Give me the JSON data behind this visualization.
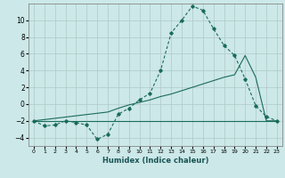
{
  "xlabel": "Humidex (Indice chaleur)",
  "background_color": "#cce8e8",
  "grid_color": "#b0c8c8",
  "line_color": "#1a6b5a",
  "x_data": [
    0,
    1,
    2,
    3,
    4,
    5,
    6,
    7,
    8,
    9,
    10,
    11,
    12,
    13,
    14,
    15,
    16,
    17,
    18,
    19,
    20,
    21,
    22,
    23
  ],
  "curve1_y": [
    -2,
    -2.6,
    -2.5,
    -2.0,
    -2.2,
    -2.5,
    -4.2,
    -3.6,
    -1.2,
    -0.5,
    0.5,
    1.3,
    4.0,
    8.5,
    10.0,
    11.7,
    11.2,
    9.0,
    7.0,
    5.8,
    3.0,
    -0.2,
    -1.5,
    -2.0
  ],
  "line1_y": [
    -2,
    -2,
    -2,
    -2,
    -2,
    -2,
    -2,
    -2,
    -2,
    -2,
    -2,
    -2,
    -2,
    -2,
    -2,
    -2,
    -2,
    -2,
    -2,
    -2,
    -2,
    -2,
    -2,
    -2
  ],
  "line2_y": [
    -2,
    -1.85,
    -1.7,
    -1.55,
    -1.4,
    -1.25,
    -1.1,
    -0.95,
    -0.5,
    -0.1,
    0.2,
    0.5,
    0.9,
    1.2,
    1.6,
    2.0,
    2.4,
    2.8,
    3.2,
    3.5,
    5.8,
    3.2,
    -2.0,
    -2.0
  ],
  "ylim": [
    -5,
    12
  ],
  "xlim": [
    -0.5,
    23.5
  ],
  "yticks": [
    -4,
    -2,
    0,
    2,
    4,
    6,
    8,
    10
  ]
}
